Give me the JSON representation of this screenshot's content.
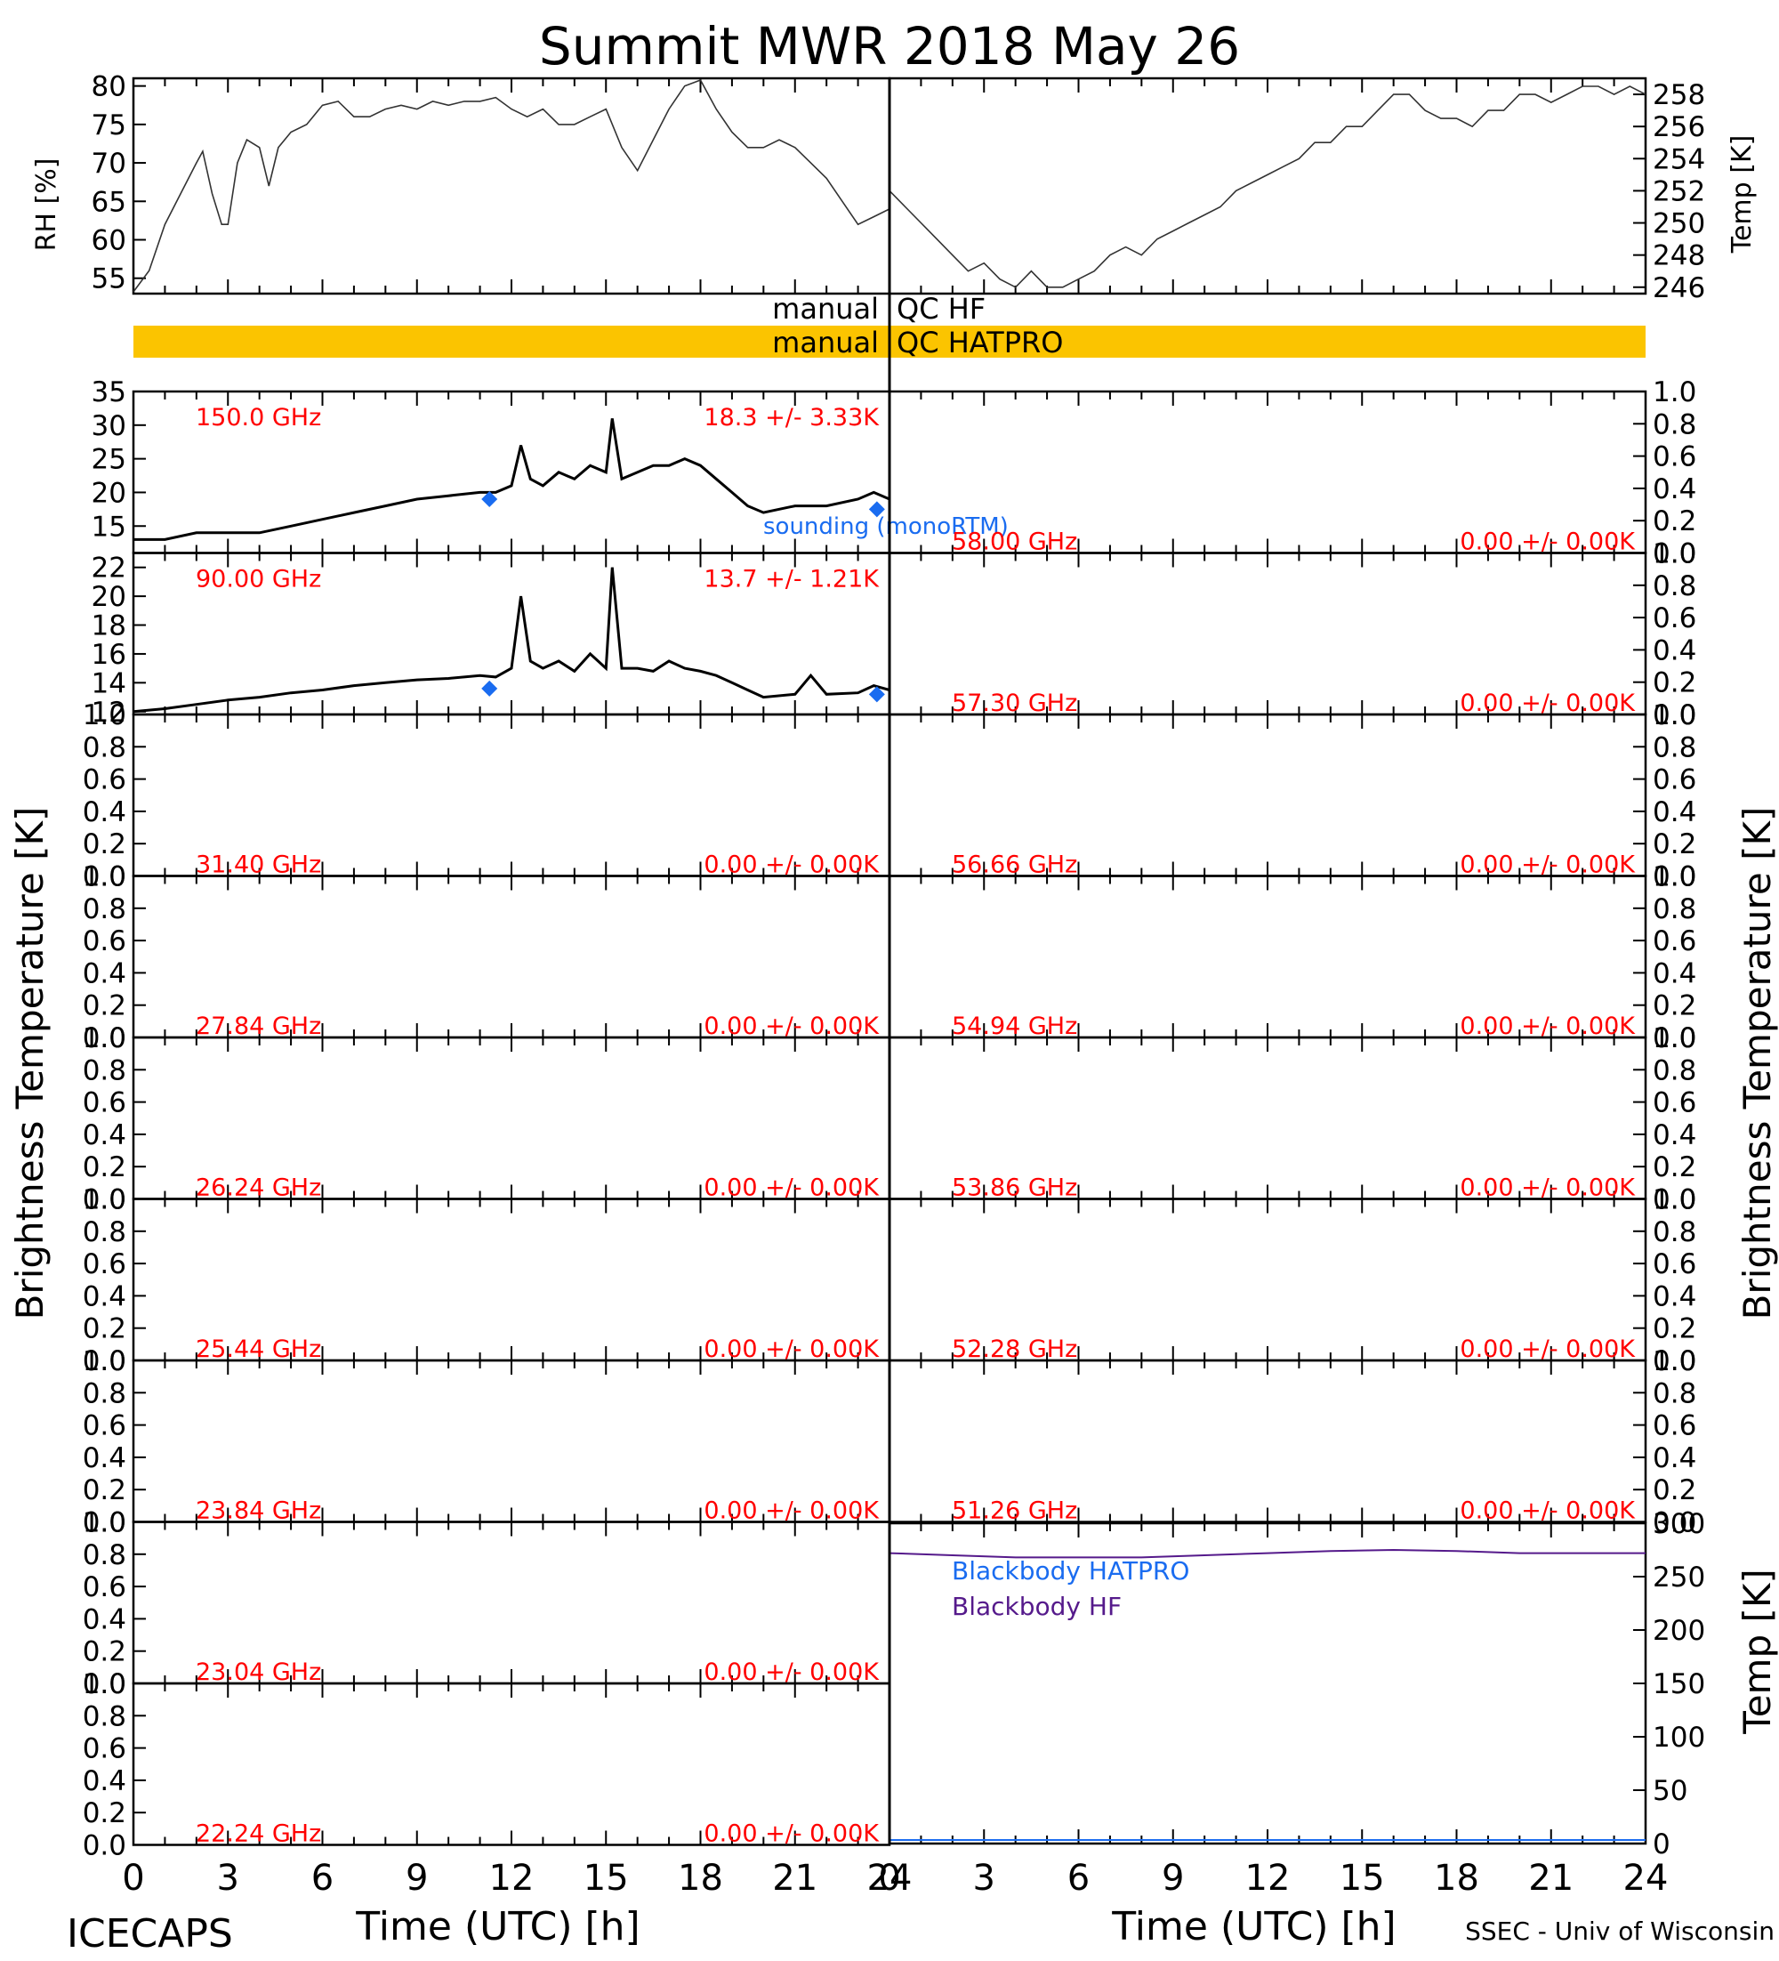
{
  "title": "Summit MWR 2018 May 26",
  "footer": {
    "left": "ICECAPS",
    "right": "SSEC - Univ of Wisconsin",
    "xlabel": "Time (UTC) [h]"
  },
  "colors": {
    "channel_label": "#ff0000",
    "sounding": "#1a6cf0",
    "blackbody_hf": "#551a8b",
    "qc_bar": "#fbc400"
  },
  "qc": {
    "hf_label_left": "manual",
    "hf_label_right": "QC HF",
    "hatpro_label_left": "manual",
    "hatpro_label_right": "QC HATPRO"
  },
  "y_labels": {
    "rh": "RH [%]",
    "temp": "Temp [K]",
    "tb_left": "Brightness Temperature [K]",
    "tb_right": "Brightness Temperature [K]",
    "bb_temp": "Temp [K]"
  },
  "legend": {
    "sounding": "sounding (monoRTM)",
    "bb_hatpro": "Blackbody HATPRO",
    "bb_hf": "Blackbody HF"
  },
  "chart_data": [
    {
      "type": "line",
      "panel": "rh",
      "xlim": [
        0,
        24
      ],
      "ylim": [
        53,
        81
      ],
      "yticks": [
        "80",
        "75",
        "70",
        "65",
        "60",
        "55"
      ],
      "x": [
        0,
        0.5,
        1,
        1.5,
        2,
        2.2,
        2.5,
        2.8,
        3.0,
        3.3,
        3.6,
        4.0,
        4.3,
        4.6,
        5.0,
        5.5,
        6,
        6.5,
        7,
        7.5,
        8,
        8.5,
        9,
        9.5,
        10,
        10.5,
        11,
        11.5,
        12,
        12.5,
        13,
        13.5,
        14,
        14.5,
        15,
        15.5,
        16,
        16.5,
        17,
        17.5,
        18,
        18.5,
        19,
        19.5,
        20,
        20.5,
        21,
        21.5,
        22,
        22.5,
        23,
        23.5,
        24
      ],
      "y": [
        53,
        56,
        62,
        66,
        70,
        71.5,
        66,
        62,
        62,
        70,
        73,
        72,
        67,
        72,
        74,
        75,
        77.5,
        78,
        76,
        76,
        77,
        77.5,
        77,
        78,
        77.5,
        78,
        78,
        78.5,
        77,
        76,
        77,
        75,
        75,
        76,
        77,
        72,
        69,
        73,
        77,
        80,
        81,
        77,
        74,
        72,
        72,
        73,
        72,
        70,
        68,
        65,
        62,
        63,
        64
      ]
    },
    {
      "type": "line",
      "panel": "temp",
      "xlim": [
        0,
        24
      ],
      "ylim": [
        245.6,
        259
      ],
      "yticks": [
        "258",
        "256",
        "254",
        "252",
        "250",
        "248",
        "246"
      ],
      "x": [
        0,
        0.5,
        1,
        1.5,
        2,
        2.5,
        3,
        3.5,
        4,
        4.5,
        5,
        5.5,
        6,
        6.5,
        7,
        7.5,
        8,
        8.5,
        9,
        9.5,
        10,
        10.5,
        11,
        11.5,
        12,
        12.5,
        13,
        13.5,
        14,
        14.5,
        15,
        15.5,
        16,
        16.5,
        17,
        17.5,
        18,
        18.5,
        19,
        19.5,
        20,
        20.5,
        21,
        21.5,
        22,
        22.5,
        23,
        23.5,
        24
      ],
      "y": [
        252,
        251,
        250,
        249,
        248,
        247,
        247.5,
        246.5,
        246,
        247,
        246,
        246,
        246.5,
        247,
        248,
        248.5,
        248,
        249,
        249.5,
        250,
        250.5,
        251,
        252,
        252.5,
        253,
        253.5,
        254,
        255,
        255,
        256,
        256,
        257,
        258,
        258,
        257,
        256.5,
        256.5,
        256,
        257,
        257,
        258,
        258,
        257.5,
        258,
        258.5,
        258.5,
        258,
        258.5,
        258
      ]
    },
    {
      "type": "line",
      "panel": "tb-150",
      "xlim": [
        0,
        24
      ],
      "ylim": [
        11,
        35
      ],
      "yticks": [
        "35",
        "30",
        "25",
        "20",
        "15"
      ],
      "channel": "150.0 GHz",
      "stats": "18.3 +/-  3.33K",
      "x": [
        0,
        1,
        2,
        3,
        4,
        5,
        6,
        7,
        8,
        9,
        10,
        11,
        11.5,
        12,
        12.3,
        12.6,
        13,
        13.5,
        14,
        14.5,
        15,
        15.2,
        15.5,
        16,
        16.5,
        17,
        17.5,
        18,
        18.5,
        19,
        19.5,
        20,
        21,
        22,
        23,
        23.5,
        24
      ],
      "y": [
        13,
        13,
        14,
        14,
        14,
        15,
        16,
        17,
        18,
        19,
        19.5,
        20,
        20,
        21,
        27,
        22,
        21,
        23,
        22,
        24,
        23,
        31,
        22,
        23,
        24,
        24,
        25,
        24,
        22,
        20,
        18,
        17,
        18,
        18,
        19,
        20,
        19
      ],
      "sounding_points": [
        [
          11.3,
          19
        ],
        [
          23.6,
          17.5
        ]
      ]
    },
    {
      "type": "line",
      "panel": "tb-90",
      "xlim": [
        0,
        24
      ],
      "ylim": [
        11.8,
        23
      ],
      "yticks": [
        "22",
        "20",
        "18",
        "16",
        "14",
        "12"
      ],
      "channel": "90.00 GHz",
      "stats": "13.7 +/-  1.21K",
      "x": [
        0,
        1,
        2,
        3,
        4,
        5,
        6,
        7,
        8,
        9,
        10,
        11,
        11.5,
        12,
        12.3,
        12.6,
        13,
        13.5,
        14,
        14.5,
        15,
        15.2,
        15.5,
        16,
        16.5,
        17,
        17.5,
        18,
        18.5,
        19,
        19.5,
        20,
        21,
        21.5,
        22,
        23,
        23.5,
        24
      ],
      "y": [
        12,
        12.2,
        12.5,
        12.8,
        13,
        13.3,
        13.5,
        13.8,
        14,
        14.2,
        14.3,
        14.5,
        14.4,
        15,
        20,
        15.5,
        15,
        15.5,
        14.8,
        16,
        15,
        22,
        15,
        15,
        14.8,
        15.5,
        15,
        14.8,
        14.5,
        14,
        13.5,
        13,
        13.2,
        14.5,
        13.2,
        13.3,
        13.8,
        13.5
      ],
      "sounding_points": [
        [
          11.3,
          13.6
        ],
        [
          23.6,
          13.2
        ]
      ]
    },
    {
      "type": "line",
      "panel": "tb-58.00",
      "ylim": [
        0,
        1
      ],
      "channel": "58.00 GHz",
      "stats": "0.00 +/-  0.00K"
    },
    {
      "type": "line",
      "panel": "tb-57.30",
      "ylim": [
        0,
        1
      ],
      "channel": "57.30 GHz",
      "stats": "0.00 +/-  0.00K"
    },
    {
      "type": "line",
      "panel": "tb-31.40",
      "ylim": [
        0,
        1
      ],
      "channel": "31.40 GHz",
      "stats": "0.00 +/-  0.00K"
    },
    {
      "type": "line",
      "panel": "tb-56.66",
      "ylim": [
        0,
        1
      ],
      "channel": "56.66 GHz",
      "stats": "0.00 +/-  0.00K"
    },
    {
      "type": "line",
      "panel": "tb-27.84",
      "ylim": [
        0,
        1
      ],
      "channel": "27.84 GHz",
      "stats": "0.00 +/-  0.00K"
    },
    {
      "type": "line",
      "panel": "tb-54.94",
      "ylim": [
        0,
        1
      ],
      "channel": "54.94 GHz",
      "stats": "0.00 +/-  0.00K"
    },
    {
      "type": "line",
      "panel": "tb-26.24",
      "ylim": [
        0,
        1
      ],
      "channel": "26.24 GHz",
      "stats": "0.00 +/-  0.00K"
    },
    {
      "type": "line",
      "panel": "tb-53.86",
      "ylim": [
        0,
        1
      ],
      "channel": "53.86 GHz",
      "stats": "0.00 +/-  0.00K"
    },
    {
      "type": "line",
      "panel": "tb-25.44",
      "ylim": [
        0,
        1
      ],
      "channel": "25.44 GHz",
      "stats": "0.00 +/-  0.00K"
    },
    {
      "type": "line",
      "panel": "tb-52.28",
      "ylim": [
        0,
        1
      ],
      "channel": "52.28 GHz",
      "stats": "0.00 +/-  0.00K"
    },
    {
      "type": "line",
      "panel": "tb-23.84",
      "ylim": [
        0,
        1
      ],
      "channel": "23.84 GHz",
      "stats": "0.00 +/-  0.00K"
    },
    {
      "type": "line",
      "panel": "tb-51.26",
      "ylim": [
        0,
        1
      ],
      "channel": "51.26 GHz",
      "stats": "0.00 +/-  0.00K"
    },
    {
      "type": "line",
      "panel": "tb-23.04",
      "ylim": [
        0,
        1
      ],
      "channel": "23.04 GHz",
      "stats": "0.00 +/-  0.00K"
    },
    {
      "type": "line",
      "panel": "tb-22.24",
      "ylim": [
        0,
        1
      ],
      "channel": "22.24 GHz",
      "stats": "0.00 +/-  0.00K"
    },
    {
      "type": "line",
      "panel": "blackbody",
      "xlim": [
        0,
        24
      ],
      "ylim": [
        0,
        300
      ],
      "yticks": [
        "300",
        "250",
        "200",
        "150",
        "100",
        "50",
        "0"
      ],
      "series": [
        {
          "name": "Blackbody HF",
          "x": [
            0,
            2,
            4,
            6,
            8,
            10,
            12,
            14,
            16,
            18,
            20,
            22,
            24
          ],
          "y": [
            272,
            270,
            268,
            268,
            268,
            270,
            272,
            274,
            275,
            274,
            272,
            272,
            272
          ]
        }
      ]
    }
  ],
  "tb_axis": {
    "yticks": [
      "1.0",
      "0.8",
      "0.6",
      "0.4",
      "0.2",
      "0.0"
    ],
    "xticks": [
      "0",
      "3",
      "6",
      "9",
      "12",
      "15",
      "18",
      "21",
      "24"
    ]
  }
}
